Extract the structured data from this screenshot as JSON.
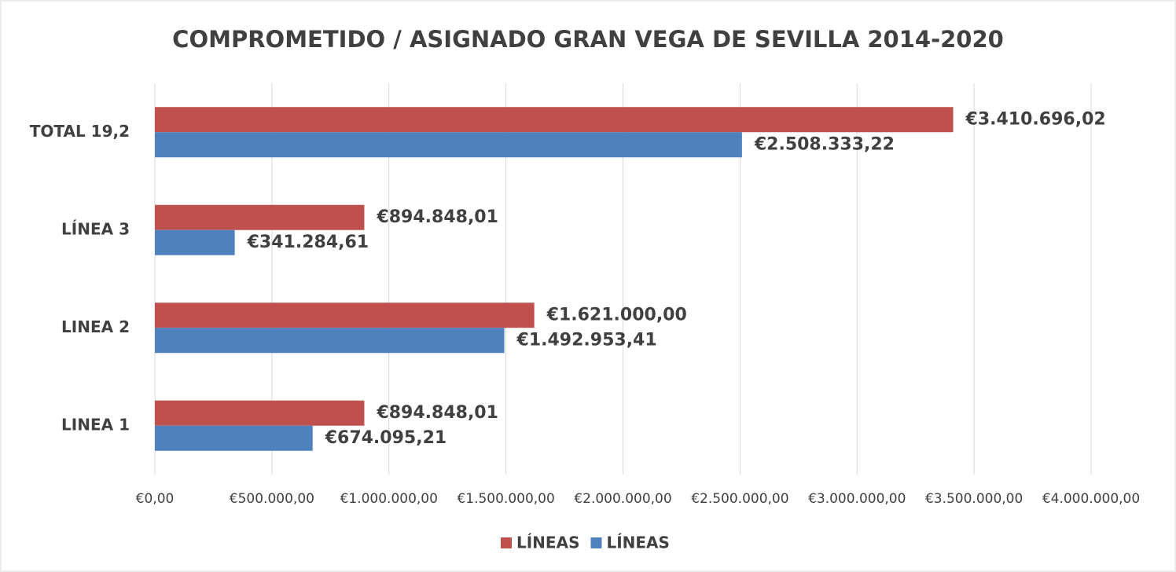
{
  "chart_data": {
    "type": "barh",
    "title": "COMPROMETIDO / ASIGNADO GRAN VEGA DE SEVILLA 2014-2020",
    "categories": [
      "LINEA 1",
      "LINEA 2",
      "LÍNEA 3",
      "TOTAL 19,2"
    ],
    "series": [
      {
        "name": "LÍNEAS",
        "color": "#c0504d",
        "values": [
          894848.01,
          1621000.0,
          894848.01,
          3410696.02
        ],
        "value_labels": [
          "€894.848,01",
          "€1.621.000,00",
          "€894.848,01",
          "€3.410.696,02"
        ]
      },
      {
        "name": "LÍNEAS",
        "color": "#4f81bd",
        "values": [
          674095.21,
          1492953.41,
          341284.61,
          2508333.22
        ],
        "value_labels": [
          "€674.095,21",
          "€1.492.953,41",
          "€341.284,61",
          "€2.508.333,22"
        ]
      }
    ],
    "xlim": [
      0,
      4000000
    ],
    "xticks": [
      {
        "value": 0,
        "label": "€0,00"
      },
      {
        "value": 500000,
        "label": "€500.000,00"
      },
      {
        "value": 1000000,
        "label": "€1.000.000,00"
      },
      {
        "value": 1500000,
        "label": "€1.500.000,00"
      },
      {
        "value": 2000000,
        "label": "€2.000.000,00"
      },
      {
        "value": 2500000,
        "label": "€2.500.000,00"
      },
      {
        "value": 3000000,
        "label": "€3.000.000,00"
      },
      {
        "value": 3500000,
        "label": "€3.500.000,00"
      },
      {
        "value": 4000000,
        "label": "€4.000.000,00"
      }
    ],
    "grid": true,
    "legend": "bottom"
  }
}
